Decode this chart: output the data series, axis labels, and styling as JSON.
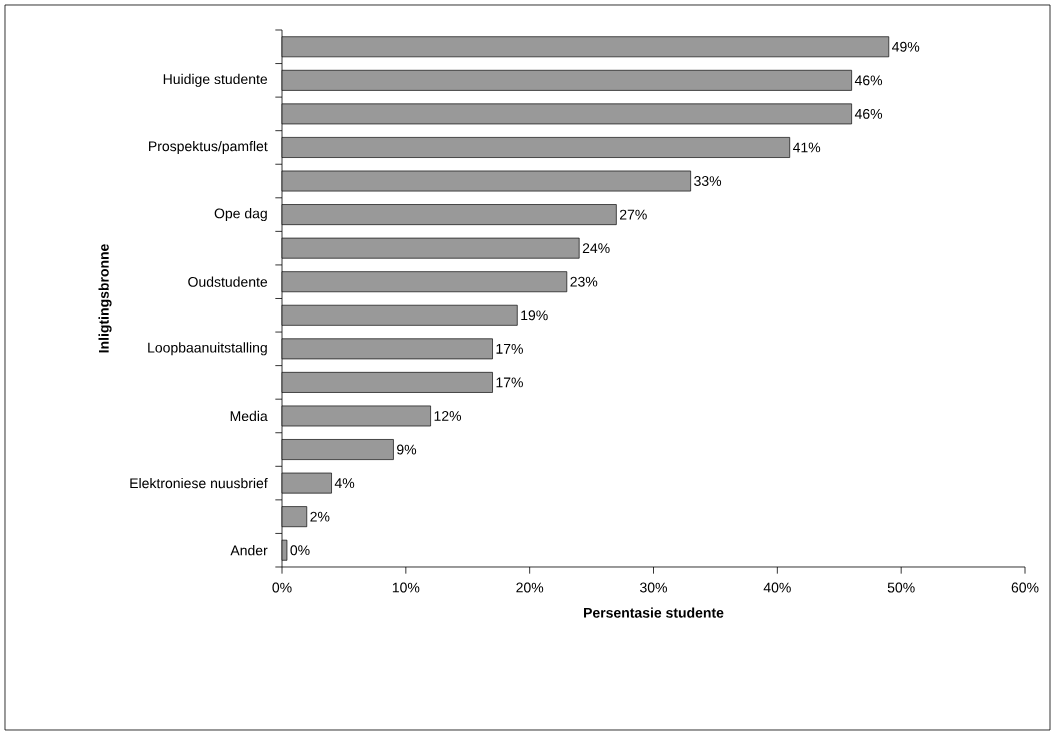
{
  "chart_data": {
    "type": "bar",
    "orientation": "horizontal",
    "xlabel": "Persentasie studente",
    "ylabel": "Inligtingsbronne",
    "categories": [
      null,
      "Huidige studente",
      null,
      "Prospektus/pamflet",
      null,
      "Ope dag",
      null,
      "Oudstudente",
      null,
      "Loopbaanuitstalling",
      null,
      "Media",
      null,
      "Elektroniese nuusbrief",
      null,
      "Ander"
    ],
    "values": [
      49,
      46,
      46,
      41,
      33,
      27,
      24,
      23,
      19,
      17,
      17,
      12,
      9,
      4,
      2,
      0.4
    ],
    "value_labels": [
      "49%",
      "46%",
      "46%",
      "41%",
      "33%",
      "27%",
      "24%",
      "23%",
      "19%",
      "17%",
      "17%",
      "12%",
      "9%",
      "4%",
      "2%",
      "0%"
    ],
    "color": "#999999",
    "xlim": [
      0,
      60
    ],
    "xticks": [
      {
        "value": 0,
        "label": "0%"
      },
      {
        "value": 10,
        "label": "10%"
      },
      {
        "value": 20,
        "label": "20%"
      },
      {
        "value": 30,
        "label": "30%"
      },
      {
        "value": 40,
        "label": "40%"
      },
      {
        "value": 50,
        "label": "50%"
      },
      {
        "value": 60,
        "label": "60%"
      }
    ]
  }
}
